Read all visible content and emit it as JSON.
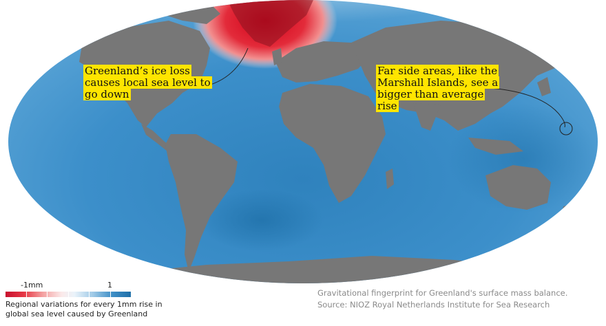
{
  "map": {
    "ocean_colors": {
      "high": "#1f6fa8",
      "mid": "#4f9fd2",
      "low": "#d8e9f4",
      "negative": "#d6001c"
    },
    "land_color": "#777777"
  },
  "callouts": {
    "greenland": "Greenland’s ice loss causes local sea level to go down",
    "far_side": "Far side areas, like the Marshall Islands, see a bigger than average rise"
  },
  "legend": {
    "min_label": "-1mm",
    "max_label": "1",
    "description": "Regional variations for every 1mm rise in global sea level caused by Greenland"
  },
  "source": "Gravitational fingerprint for Greenland's surface mass balance. Source: NIOZ Royal Netherlands Institute for Sea Research"
}
